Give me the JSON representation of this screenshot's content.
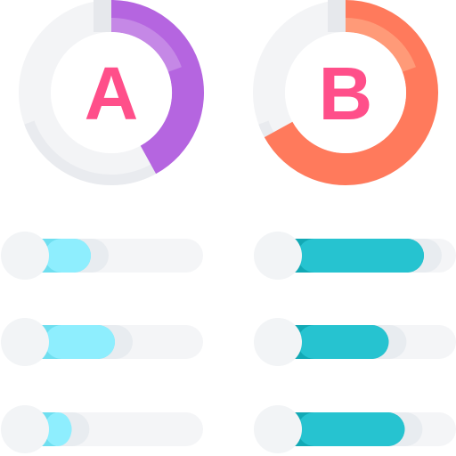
{
  "donuts": [
    {
      "letter": "A",
      "fraction": 0.42,
      "arc_color": "#b565e0",
      "arc_highlight": "#c588e6",
      "letter_color": "#ff4f8a"
    },
    {
      "letter": "B",
      "fraction": 0.67,
      "arc_color": "#ff7a5c",
      "arc_highlight": "#ff9a78",
      "letter_color": "#ff4f8a"
    }
  ],
  "progress_columns": [
    {
      "fill_color": "#8eeefe",
      "fill_shade": "#6fdff0",
      "ghost_color": "#e8ecf0",
      "levels": [
        0.3,
        0.45,
        0.18
      ]
    },
    {
      "fill_color": "#26c3d0",
      "fill_shade": "#12a9b5",
      "ghost_color": "#e8ecf0",
      "levels": [
        0.8,
        0.58,
        0.68
      ]
    }
  ],
  "track_color": "#f4f5f7",
  "knob_color": "#f2f4f6"
}
